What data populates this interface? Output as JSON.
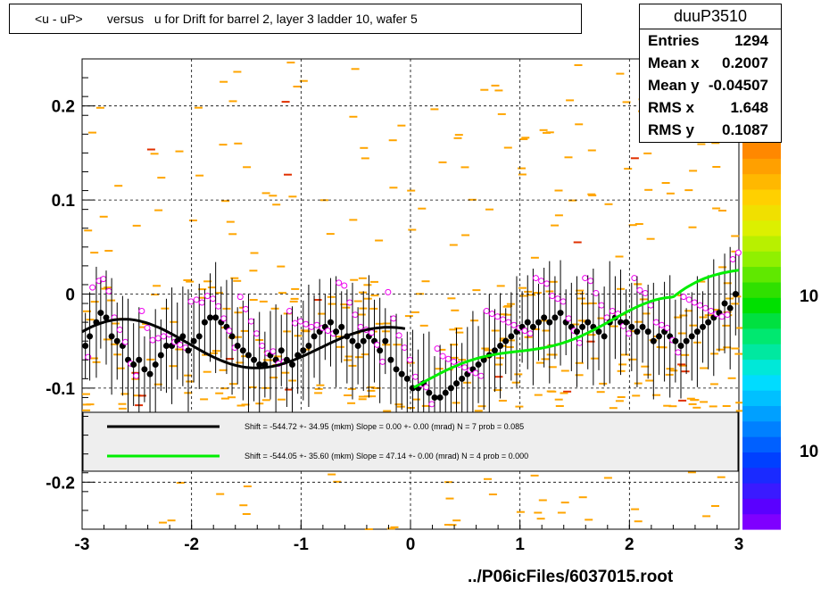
{
  "title": "<u - uP>       versus   u for Drift for barrel 2, layer 3 ladder 10, wafer 5",
  "stats": {
    "name": "duuP3510",
    "rows": [
      {
        "label": "Entries",
        "value": "1294"
      },
      {
        "label": "Mean x",
        "value": "0.2007"
      },
      {
        "label": "Mean y",
        "value": "-0.04507"
      },
      {
        "label": "RMS x",
        "value": "1.648"
      },
      {
        "label": "RMS y",
        "value": "0.1087"
      }
    ]
  },
  "footer": "../P06icFiles/6037015.root",
  "legend": [
    {
      "text": "Shift =  -544.72 +- 34.95 (mkm) Slope =    0.00 +- 0.00 (mrad)  N = 7 prob = 0.085",
      "color": "#000000"
    },
    {
      "text": "Shift =  -544.05 +- 35.60 (mkm) Slope =   47.14 +- 0.00 (mrad)  N = 4 prob = 0.000",
      "color": "#00ee00"
    }
  ],
  "colorbar_labels": [
    "10",
    "10"
  ],
  "colors": {
    "fill": "#ffa500",
    "profile": "#000000",
    "alt_marker": "#ee00ee",
    "fit_black": "#000000",
    "fit_green": "#00ee00"
  },
  "chart_data": {
    "type": "scatter",
    "xlim": [
      -3,
      3
    ],
    "ylim": [
      -0.25,
      0.25
    ],
    "x_ticks": [
      "-3",
      "-2",
      "-1",
      "0",
      "1",
      "2",
      "3"
    ],
    "y_ticks": [
      "-0.2",
      "-0.1",
      "0",
      "0.1",
      "0.2"
    ],
    "grid": true,
    "series": [
      {
        "marker": "filled-circle",
        "x": [
          -2.97,
          -2.93,
          -2.87,
          -2.83,
          -2.78,
          -2.73,
          -2.68,
          -2.63,
          -2.58,
          -2.53,
          -2.48,
          -2.43,
          -2.38,
          -2.33,
          -2.28,
          -2.23,
          -2.18,
          -2.13,
          -2.08,
          -2.03,
          -1.98,
          -1.93,
          -1.88,
          -1.83,
          -1.78,
          -1.73,
          -1.68,
          -1.63,
          -1.58,
          -1.53,
          -1.48,
          -1.43,
          -1.38,
          -1.33,
          -1.28,
          -1.23,
          -1.18,
          -1.13,
          -1.08,
          -1.03,
          -0.98,
          -0.93,
          -0.88,
          -0.83,
          -0.78,
          -0.73,
          -0.68,
          -0.63,
          -0.58,
          -0.53,
          -0.48,
          -0.43,
          -0.38,
          -0.33,
          -0.28,
          -0.23,
          -0.18,
          -0.13,
          -0.08,
          -0.03,
          0.02,
          0.07,
          0.12,
          0.17,
          0.22,
          0.27,
          0.32,
          0.37,
          0.42,
          0.47,
          0.52,
          0.57,
          0.62,
          0.67,
          0.72,
          0.77,
          0.82,
          0.87,
          0.92,
          0.97,
          1.02,
          1.07,
          1.12,
          1.17,
          1.22,
          1.27,
          1.32,
          1.37,
          1.42,
          1.47,
          1.52,
          1.57,
          1.62,
          1.67,
          1.72,
          1.77,
          1.82,
          1.87,
          1.92,
          1.97,
          2.02,
          2.07,
          2.12,
          2.17,
          2.22,
          2.27,
          2.32,
          2.37,
          2.42,
          2.47,
          2.52,
          2.57,
          2.62,
          2.67,
          2.72,
          2.77,
          2.82,
          2.87,
          2.92,
          2.97
        ],
        "y": [
          -0.055,
          -0.045,
          -0.03,
          -0.02,
          -0.025,
          -0.045,
          -0.05,
          -0.055,
          -0.07,
          -0.075,
          -0.07,
          -0.08,
          -0.085,
          -0.075,
          -0.065,
          -0.055,
          -0.055,
          -0.05,
          -0.045,
          -0.06,
          -0.05,
          -0.045,
          -0.03,
          -0.025,
          -0.025,
          -0.03,
          -0.035,
          -0.045,
          -0.055,
          -0.06,
          -0.065,
          -0.07,
          -0.075,
          -0.075,
          -0.065,
          -0.07,
          -0.06,
          -0.07,
          -0.075,
          -0.065,
          -0.06,
          -0.055,
          -0.045,
          -0.04,
          -0.035,
          -0.03,
          -0.04,
          -0.035,
          -0.045,
          -0.05,
          -0.055,
          -0.05,
          -0.045,
          -0.05,
          -0.06,
          -0.05,
          -0.07,
          -0.08,
          -0.085,
          -0.09,
          -0.1,
          -0.1,
          -0.095,
          -0.105,
          -0.11,
          -0.11,
          -0.105,
          -0.1,
          -0.095,
          -0.09,
          -0.085,
          -0.08,
          -0.075,
          -0.07,
          -0.065,
          -0.06,
          -0.055,
          -0.05,
          -0.045,
          -0.04,
          -0.035,
          -0.03,
          -0.035,
          -0.03,
          -0.025,
          -0.03,
          -0.025,
          -0.02,
          -0.03,
          -0.035,
          -0.04,
          -0.035,
          -0.03,
          -0.035,
          -0.04,
          -0.045,
          -0.03,
          -0.025,
          -0.03,
          -0.03,
          -0.035,
          -0.04,
          -0.035,
          -0.04,
          -0.05,
          -0.045,
          -0.04,
          -0.045,
          -0.05,
          -0.055,
          -0.05,
          -0.045,
          -0.04,
          -0.035,
          -0.03,
          -0.025,
          -0.02,
          -0.01,
          -0.015,
          0.0
        ]
      }
    ],
    "fits": [
      {
        "name": "black",
        "x_range": [
          -3.0,
          -0.05
        ]
      },
      {
        "name": "green",
        "x_range": [
          0.03,
          3.0
        ]
      }
    ]
  }
}
